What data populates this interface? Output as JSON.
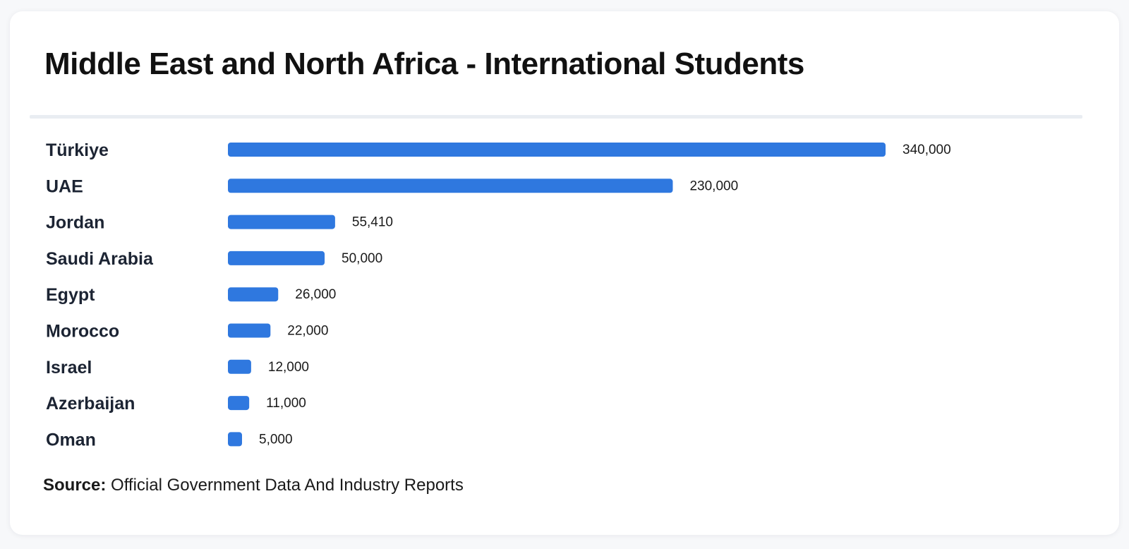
{
  "header": {
    "title": "Middle East and North Africa - International Students"
  },
  "footer": {
    "source_label": "Source:",
    "source_text": "Official Government Data And Industry Reports"
  },
  "colors": {
    "bar": "#2f78df",
    "label": "#1c2433",
    "value_label": "#1a1a1a"
  },
  "chart_data": {
    "type": "bar",
    "orientation": "horizontal",
    "title": "Middle East and North Africa - International Students",
    "categories": [
      "Türkiye",
      "UAE",
      "Jordan",
      "Saudi Arabia",
      "Egypt",
      "Morocco",
      "Israel",
      "Azerbaijan",
      "Oman"
    ],
    "values": [
      340000,
      230000,
      55410,
      50000,
      26000,
      22000,
      12000,
      11000,
      5000
    ],
    "value_labels": [
      "340,000",
      "230,000",
      "55,410",
      "50,000",
      "26,000",
      "22,000",
      "12,000",
      "11,000",
      "5,000"
    ],
    "xlabel": "",
    "ylabel": "",
    "xlim": [
      0,
      340000
    ],
    "grid": false,
    "legend": "none"
  }
}
